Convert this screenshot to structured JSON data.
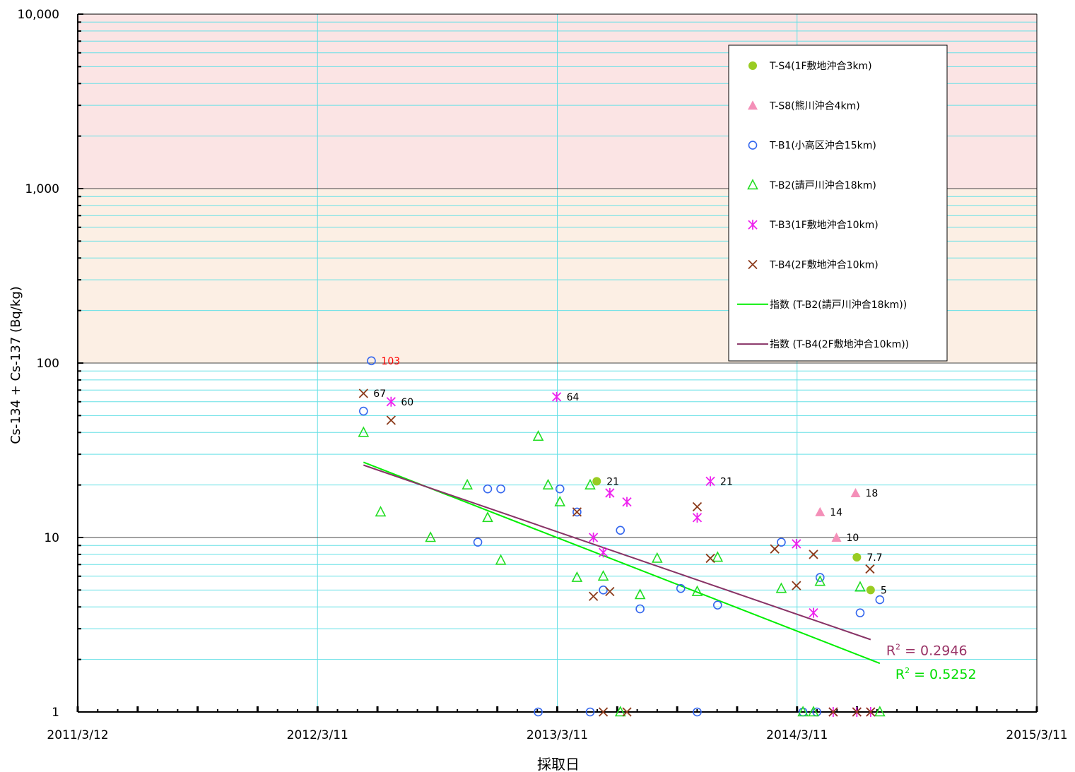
{
  "chart_data": {
    "type": "scatter",
    "xlabel": "採取日",
    "ylabel": "Cs-134 + Cs-137 (Bq/kg)",
    "y_scale": "log",
    "ylim": [
      1,
      10000
    ],
    "xlim": [
      "2011-03-12",
      "2015-03-11"
    ],
    "x_ticks": [
      "2011/3/12",
      "2012/3/11",
      "2013/3/11",
      "2014/3/11",
      "2015/3/11"
    ],
    "y_ticks": [
      "1",
      "10",
      "100",
      "1,000",
      "10,000"
    ],
    "grid": true,
    "legend_position": "top-right",
    "bands": [
      {
        "from": 1000,
        "to": 10000,
        "color": "#fbe4e4"
      },
      {
        "from": 100,
        "to": 1000,
        "color": "#fcefe4"
      }
    ],
    "series": [
      {
        "name": "T-S4(1F敷地沖合3km)",
        "marker": "filled-circle",
        "color": "#99cc22",
        "points": [
          [
            "2013-05-10",
            21
          ],
          [
            "2014-06-10",
            7.7
          ],
          [
            "2014-07-01",
            5
          ]
        ]
      },
      {
        "name": "T-S8(熊川沖合4km)",
        "marker": "filled-triangle",
        "color": "#f48fb8",
        "points": [
          [
            "2014-04-15",
            14
          ],
          [
            "2014-05-10",
            10
          ],
          [
            "2014-06-08",
            18
          ]
        ]
      },
      {
        "name": "T-B1(小高区沖合15km)",
        "marker": "open-circle",
        "color": "#3366ee",
        "points": [
          [
            "2012-05-20",
            53
          ],
          [
            "2012-06-01",
            103
          ],
          [
            "2012-11-10",
            9.4
          ],
          [
            "2012-11-25",
            19
          ],
          [
            "2012-12-15",
            19
          ],
          [
            "2013-02-10",
            1
          ],
          [
            "2013-03-15",
            19
          ],
          [
            "2013-04-10",
            14
          ],
          [
            "2013-04-30",
            1
          ],
          [
            "2013-05-20",
            5
          ],
          [
            "2013-06-15",
            11
          ],
          [
            "2013-07-15",
            3.9
          ],
          [
            "2013-09-15",
            5.1
          ],
          [
            "2013-10-10",
            1
          ],
          [
            "2013-11-10",
            4.1
          ],
          [
            "2014-02-15",
            9.4
          ],
          [
            "2014-03-20",
            1
          ],
          [
            "2014-04-10",
            1
          ],
          [
            "2014-04-15",
            5.9
          ],
          [
            "2014-06-15",
            3.7
          ],
          [
            "2014-07-15",
            4.4
          ]
        ]
      },
      {
        "name": "T-B2(請戸川沖合18km)",
        "marker": "open-triangle",
        "color": "#22dd22",
        "points": [
          [
            "2012-05-20",
            40
          ],
          [
            "2012-06-15",
            14
          ],
          [
            "2012-08-30",
            10
          ],
          [
            "2012-10-25",
            20
          ],
          [
            "2012-11-25",
            13
          ],
          [
            "2012-12-15",
            7.4
          ],
          [
            "2013-02-10",
            38
          ],
          [
            "2013-02-25",
            20
          ],
          [
            "2013-03-15",
            16
          ],
          [
            "2013-04-10",
            5.9
          ],
          [
            "2013-04-30",
            20
          ],
          [
            "2013-05-20",
            6
          ],
          [
            "2013-06-15",
            1
          ],
          [
            "2013-07-15",
            4.7
          ],
          [
            "2013-08-10",
            7.6
          ],
          [
            "2013-10-10",
            4.9
          ],
          [
            "2013-11-10",
            7.7
          ],
          [
            "2014-02-15",
            5.1
          ],
          [
            "2014-03-20",
            1
          ],
          [
            "2014-04-05",
            1
          ],
          [
            "2014-04-15",
            5.6
          ],
          [
            "2014-06-15",
            5.2
          ],
          [
            "2014-07-15",
            1
          ]
        ]
      },
      {
        "name": "T-B3(1F敷地沖合10km)",
        "marker": "asterisk",
        "color": "#ee22ee",
        "points": [
          [
            "2012-07-01",
            60
          ],
          [
            "2013-03-10",
            64
          ],
          [
            "2013-05-05",
            10
          ],
          [
            "2013-05-20",
            8.2
          ],
          [
            "2013-05-30",
            18
          ],
          [
            "2013-06-25",
            16
          ],
          [
            "2013-10-10",
            13
          ],
          [
            "2013-10-30",
            21
          ],
          [
            "2014-03-10",
            9.2
          ],
          [
            "2014-04-05",
            3.7
          ],
          [
            "2014-05-05",
            1
          ],
          [
            "2014-06-10",
            1
          ],
          [
            "2014-07-01",
            1
          ]
        ]
      },
      {
        "name": "T-B4(2F敷地沖合10km)",
        "marker": "x",
        "color": "#8b3a1a",
        "points": [
          [
            "2012-05-20",
            67
          ],
          [
            "2012-07-01",
            47
          ],
          [
            "2013-04-10",
            14
          ],
          [
            "2013-05-05",
            4.6
          ],
          [
            "2013-05-20",
            1
          ],
          [
            "2013-05-30",
            4.9
          ],
          [
            "2013-06-25",
            1
          ],
          [
            "2013-10-10",
            15
          ],
          [
            "2013-10-30",
            7.6
          ],
          [
            "2014-02-05",
            8.6
          ],
          [
            "2014-03-10",
            5.3
          ],
          [
            "2014-04-05",
            8
          ],
          [
            "2014-05-05",
            1
          ],
          [
            "2014-06-10",
            1
          ],
          [
            "2014-06-30",
            6.6
          ],
          [
            "2014-07-01",
            1
          ]
        ]
      },
      {
        "name": "指数 (T-B2(請戸川沖合18km))",
        "marker": "line",
        "color": "#00ee00",
        "points": [
          [
            "2012-05-20",
            27
          ],
          [
            "2014-07-15",
            1.9
          ]
        ]
      },
      {
        "name": "指数 (T-B4(2F敷地沖合10km))",
        "marker": "line",
        "color": "#883366",
        "points": [
          [
            "2012-05-20",
            26
          ],
          [
            "2014-07-01",
            2.6
          ]
        ]
      }
    ],
    "annotations": [
      {
        "text": "103",
        "x": "2012-06-01",
        "y": 103,
        "color": "#ff0000"
      },
      {
        "text": "67",
        "x": "2012-05-20",
        "y": 67,
        "color": "#000000"
      },
      {
        "text": "60",
        "x": "2012-07-01",
        "y": 60,
        "color": "#000000"
      },
      {
        "text": "64",
        "x": "2013-03-10",
        "y": 64,
        "color": "#000000"
      },
      {
        "text": "21",
        "x": "2013-05-10",
        "y": 21,
        "color": "#000000"
      },
      {
        "text": "21",
        "x": "2013-10-30",
        "y": 21,
        "color": "#000000"
      },
      {
        "text": "14",
        "x": "2014-04-15",
        "y": 14,
        "color": "#000000"
      },
      {
        "text": "10",
        "x": "2014-05-10",
        "y": 10,
        "color": "#000000"
      },
      {
        "text": "18",
        "x": "2014-06-08",
        "y": 18,
        "color": "#000000"
      },
      {
        "text": "7.7",
        "x": "2014-06-10",
        "y": 7.7,
        "color": "#000000"
      },
      {
        "text": "5",
        "x": "2014-07-01",
        "y": 5,
        "color": "#000000"
      }
    ],
    "r_squared": [
      {
        "series": "指数 (T-B4(2F敷地沖合10km))",
        "label": "R",
        "sup": "2",
        "value": " = 0.2946",
        "color": "#993366"
      },
      {
        "series": "指数 (T-B2(請戸川沖合18km))",
        "label": "R",
        "sup": "2",
        "value": " = 0.5252",
        "color": "#00dd00"
      }
    ]
  }
}
